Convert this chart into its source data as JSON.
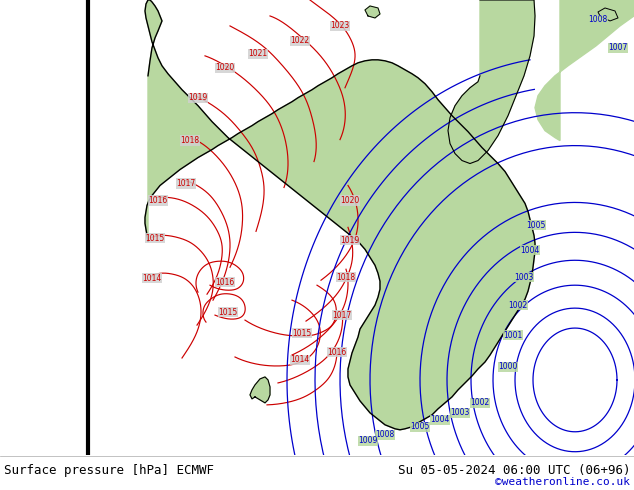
{
  "title_left": "Surface pressure [hPa] ECMWF",
  "title_right": "Su 05-05-2024 06:00 UTC (06+96)",
  "copyright": "©weatheronline.co.uk",
  "bg_color": "#d0d0d0",
  "land_color": "#b8d8a0",
  "fig_width": 6.34,
  "fig_height": 4.9,
  "dpi": 100,
  "red_color": "#cc0000",
  "blue_color": "#0000cc",
  "black_color": "#000000",
  "white_color": "#ffffff",
  "font_size_title": 9,
  "font_size_copyright": 8
}
